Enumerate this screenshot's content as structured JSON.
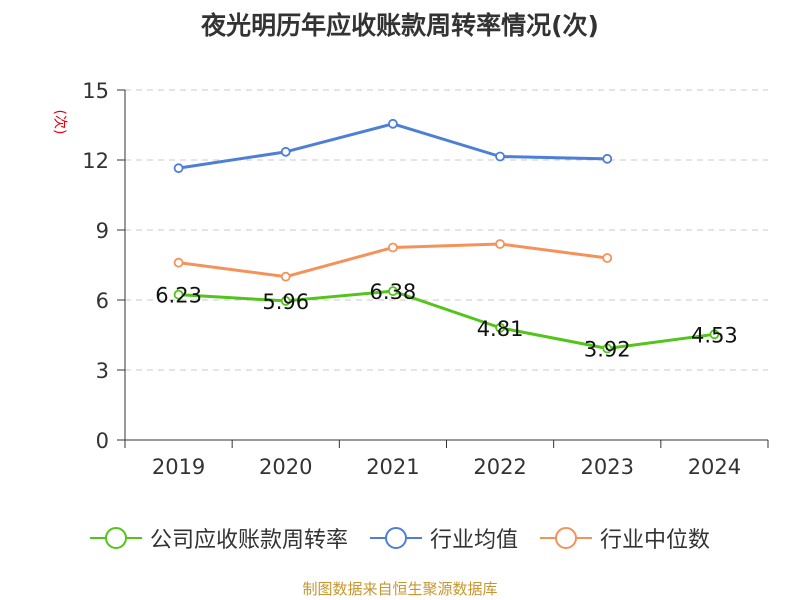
{
  "chart_data": {
    "type": "line",
    "title": "夜光明历年应收账款周转率情况(次)",
    "ylabel": "(次)",
    "categories": [
      "2019",
      "2020",
      "2021",
      "2022",
      "2023",
      "2024"
    ],
    "ylim": [
      0,
      15
    ],
    "yticks": [
      0,
      3,
      6,
      9,
      12,
      15
    ],
    "grid": true,
    "legend_position": "bottom",
    "series": [
      {
        "name": "公司应收账款周转率",
        "color": "#52c41a",
        "values": [
          6.23,
          5.96,
          6.38,
          4.81,
          3.92,
          4.53
        ],
        "show_labels": true
      },
      {
        "name": "行业均值",
        "color": "#4e7fd6",
        "values": [
          11.65,
          12.35,
          13.55,
          12.15,
          12.05,
          null
        ],
        "show_labels": false
      },
      {
        "name": "行业中位数",
        "color": "#f5925a",
        "values": [
          7.6,
          7.0,
          8.25,
          8.4,
          7.8,
          null
        ],
        "show_labels": false
      }
    ],
    "source": "制图数据来自恒生聚源数据库"
  }
}
